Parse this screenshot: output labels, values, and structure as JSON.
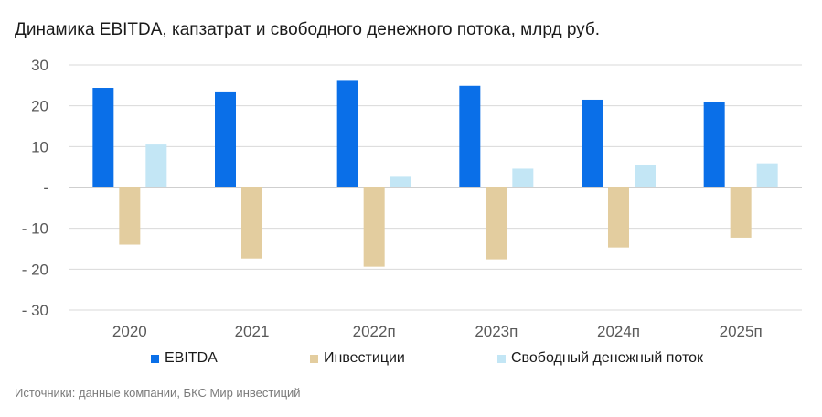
{
  "title": "Динамика EBITDA, капзатрат и свободного денежного потока, млрд руб.",
  "source": "Источники: данные компании, БКС Мир инвестиций",
  "colors": {
    "ebitda": "#0a6fe8",
    "capex": "#e3cd9f",
    "fcf": "#c3e6f5",
    "grid": "#d9d9d9",
    "axis": "#bfbfbf",
    "tick": "#595959"
  },
  "chart_data": {
    "type": "bar",
    "title": "Динамика EBITDA, капзатрат и свободного денежного потока, млрд руб.",
    "categories": [
      "2020",
      "2021",
      "2022п",
      "2023п",
      "2024п",
      "2025п"
    ],
    "series": [
      {
        "name": "EBITDA",
        "color": "#0a6fe8",
        "values": [
          24.4,
          23.3,
          26.1,
          24.9,
          21.5,
          21.0
        ]
      },
      {
        "name": "Инвестиции",
        "color": "#e3cd9f",
        "values": [
          -14.0,
          -17.4,
          -19.4,
          -17.6,
          -14.7,
          -12.3
        ]
      },
      {
        "name": "Свободный денежный поток",
        "color": "#c3e6f5",
        "values": [
          10.5,
          0,
          2.6,
          4.6,
          5.6,
          5.9
        ]
      }
    ],
    "ylim": [
      -30,
      30
    ],
    "yticks": [
      30,
      20,
      10,
      0,
      -10,
      -20,
      -30
    ],
    "ytick_labels": [
      "30",
      "20",
      "10",
      "-",
      "- 10",
      "- 20",
      "- 30"
    ],
    "grid": true,
    "legend_position": "bottom"
  }
}
